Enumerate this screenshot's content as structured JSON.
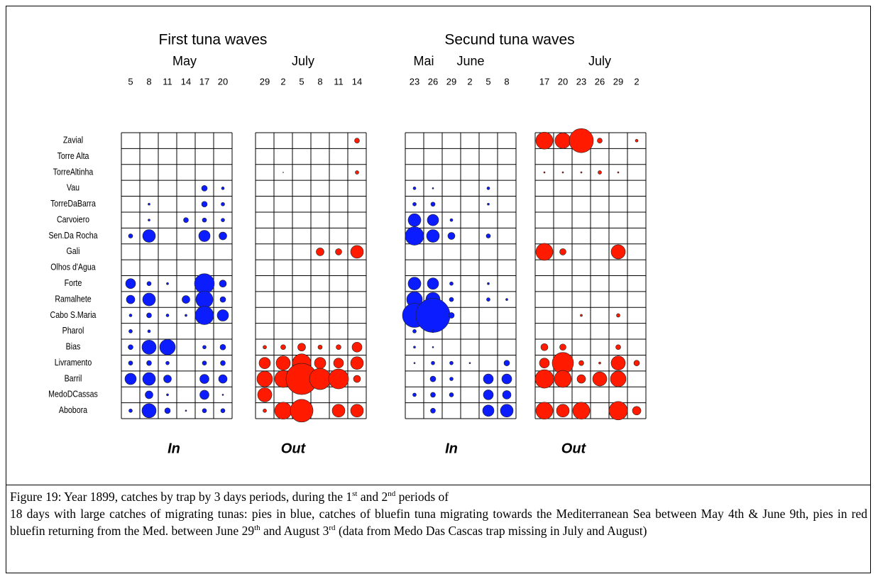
{
  "header": {
    "left_title": "First tuna waves",
    "right_title": "Secund tuna waves"
  },
  "rows": [
    "Zavial",
    "Torre Alta",
    "TorreAltinha",
    "Vau",
    "TorreDaBarra",
    "Carvoiero",
    "Sen.Da Rocha",
    "Gali",
    "Olhos d'Agua",
    "Forte",
    "Ramalhete",
    "Cabo S.Maria",
    "Pharol",
    "Bias",
    "Livramento",
    "Barril",
    "MedoDCassas",
    "Abobora"
  ],
  "panels": [
    {
      "months": [
        "May"
      ],
      "days": [
        5,
        8,
        11,
        14,
        17,
        20
      ],
      "color": "#0b1cff",
      "footer": "In",
      "values": [
        [
          null,
          null,
          null,
          null,
          null,
          null
        ],
        [
          null,
          null,
          null,
          null,
          null,
          null
        ],
        [
          null,
          null,
          null,
          null,
          null,
          null
        ],
        [
          null,
          null,
          null,
          null,
          8,
          4
        ],
        [
          null,
          3,
          null,
          null,
          8,
          5
        ],
        [
          null,
          3,
          null,
          7,
          6,
          5
        ],
        [
          6,
          18,
          null,
          null,
          16,
          11
        ],
        [
          null,
          null,
          null,
          null,
          null,
          null
        ],
        [
          null,
          null,
          null,
          null,
          null,
          null
        ],
        [
          14,
          6,
          3,
          null,
          28,
          10
        ],
        [
          12,
          18,
          null,
          11,
          24,
          8
        ],
        [
          4,
          7,
          4,
          3,
          26,
          16
        ],
        [
          5,
          4,
          null,
          null,
          null,
          null
        ],
        [
          7,
          20,
          22,
          null,
          5,
          8
        ],
        [
          6,
          7,
          5,
          null,
          6,
          7
        ],
        [
          16,
          18,
          11,
          null,
          13,
          12
        ],
        [
          null,
          11,
          3,
          null,
          13,
          2
        ],
        [
          5,
          20,
          8,
          2,
          6,
          6
        ]
      ]
    },
    {
      "months": [
        "July"
      ],
      "days": [
        29,
        2,
        5,
        8,
        11,
        14
      ],
      "color": "#ff1a00",
      "footer": "Out",
      "values": [
        [
          null,
          null,
          null,
          null,
          null,
          7
        ],
        [
          null,
          null,
          null,
          null,
          null,
          null
        ],
        [
          null,
          1,
          null,
          null,
          null,
          5
        ],
        [
          null,
          null,
          null,
          null,
          null,
          null
        ],
        [
          null,
          null,
          null,
          null,
          null,
          null
        ],
        [
          null,
          null,
          null,
          null,
          null,
          null
        ],
        [
          null,
          null,
          null,
          null,
          null,
          null
        ],
        [
          null,
          null,
          null,
          11,
          9,
          18
        ],
        [
          null,
          null,
          null,
          null,
          null,
          null
        ],
        [
          null,
          null,
          null,
          null,
          null,
          null
        ],
        [
          null,
          null,
          null,
          null,
          null,
          null
        ],
        [
          null,
          null,
          null,
          null,
          null,
          null
        ],
        [
          null,
          null,
          null,
          null,
          null,
          null
        ],
        [
          5,
          7,
          11,
          6,
          7,
          14
        ],
        [
          16,
          20,
          26,
          16,
          14,
          18
        ],
        [
          22,
          24,
          44,
          30,
          28,
          10
        ],
        [
          20,
          null,
          null,
          null,
          null,
          null
        ],
        [
          5,
          24,
          32,
          null,
          18,
          18
        ]
      ]
    },
    {
      "months": [
        "Mai",
        "June"
      ],
      "days": [
        23,
        26,
        29,
        2,
        5,
        8
      ],
      "color": "#0b1cff",
      "footer": "In",
      "values": [
        [
          null,
          null,
          null,
          null,
          null,
          null
        ],
        [
          null,
          null,
          null,
          null,
          null,
          null
        ],
        [
          null,
          null,
          null,
          null,
          null,
          null
        ],
        [
          4,
          2,
          null,
          null,
          4,
          null
        ],
        [
          5,
          6,
          null,
          null,
          3,
          null
        ],
        [
          18,
          16,
          4,
          null,
          null,
          null
        ],
        [
          26,
          18,
          10,
          null,
          6,
          null
        ],
        [
          null,
          null,
          null,
          null,
          null,
          null
        ],
        [
          null,
          null,
          null,
          null,
          null,
          null
        ],
        [
          18,
          16,
          5,
          null,
          3,
          null
        ],
        [
          22,
          20,
          6,
          null,
          5,
          3
        ],
        [
          34,
          48,
          8,
          null,
          null,
          null
        ],
        [
          5,
          4,
          null,
          null,
          null,
          null
        ],
        [
          3,
          2,
          null,
          null,
          null,
          null
        ],
        [
          2,
          5,
          5,
          2,
          null,
          8
        ],
        [
          null,
          8,
          5,
          null,
          14,
          14
        ],
        [
          5,
          7,
          6,
          null,
          14,
          12
        ],
        [
          null,
          7,
          null,
          null,
          16,
          18
        ]
      ]
    },
    {
      "months": [
        "July"
      ],
      "days": [
        17,
        20,
        23,
        26,
        29,
        2
      ],
      "color": "#ff1a00",
      "footer": "Out",
      "values": [
        [
          24,
          22,
          34,
          7,
          null,
          4
        ],
        [
          null,
          null,
          null,
          null,
          null,
          null
        ],
        [
          2,
          2,
          2,
          5,
          2,
          null
        ],
        [
          null,
          null,
          null,
          null,
          null,
          null
        ],
        [
          null,
          null,
          null,
          null,
          null,
          null
        ],
        [
          null,
          null,
          null,
          null,
          null,
          null
        ],
        [
          null,
          null,
          null,
          null,
          null,
          null
        ],
        [
          24,
          9,
          null,
          null,
          20,
          null
        ],
        [
          null,
          null,
          null,
          null,
          null,
          null
        ],
        [
          null,
          null,
          null,
          null,
          null,
          null
        ],
        [
          null,
          null,
          null,
          null,
          null,
          null
        ],
        [
          null,
          null,
          3,
          null,
          5,
          null
        ],
        [
          null,
          null,
          null,
          null,
          null,
          null
        ],
        [
          10,
          9,
          null,
          null,
          7,
          null
        ],
        [
          14,
          30,
          7,
          3,
          20,
          8
        ],
        [
          26,
          24,
          12,
          20,
          22,
          null
        ],
        [
          null,
          null,
          null,
          null,
          null,
          null
        ],
        [
          24,
          18,
          24,
          null,
          26,
          12
        ]
      ]
    }
  ],
  "caption": [
    "Figure 19: Year 1899, catches by trap by 3 days periods, during the 1",
    "st",
    " and 2",
    "nd",
    " periods of",
    "18 days with large catches of migrating tunas: pies in blue, catches of bluefin tuna migrating towards the Mediterranean Sea between May 4th & June 9th, pies in red bluefin returning from the Med. between June 29",
    "th",
    " and August 3",
    "rd",
    " (data from Medo Das Cascas trap missing in July and August)"
  ]
}
